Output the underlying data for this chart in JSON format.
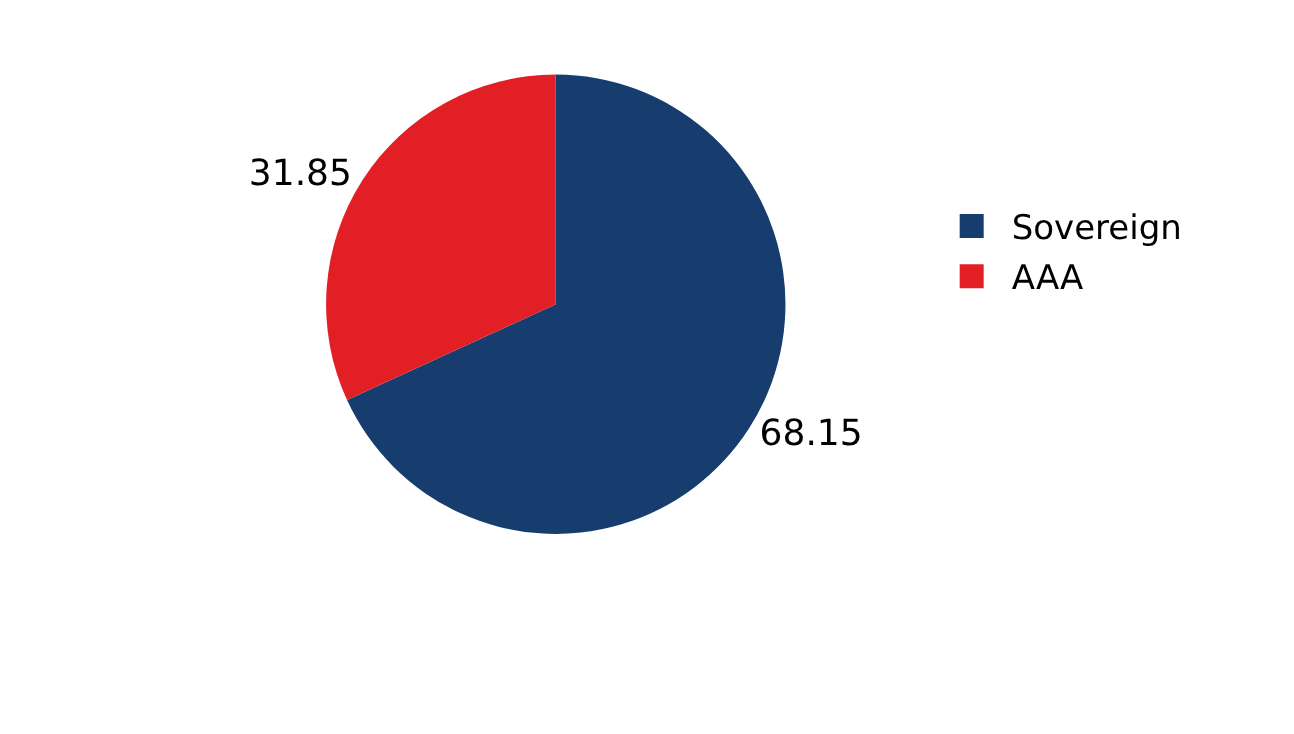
{
  "chart_data": {
    "type": "pie",
    "categories": [
      "Sovereign",
      "AAA"
    ],
    "values": [
      68.15,
      31.85
    ],
    "colors": [
      "#173c6e",
      "#e31f26"
    ],
    "data_labels": true,
    "legend": "right"
  }
}
